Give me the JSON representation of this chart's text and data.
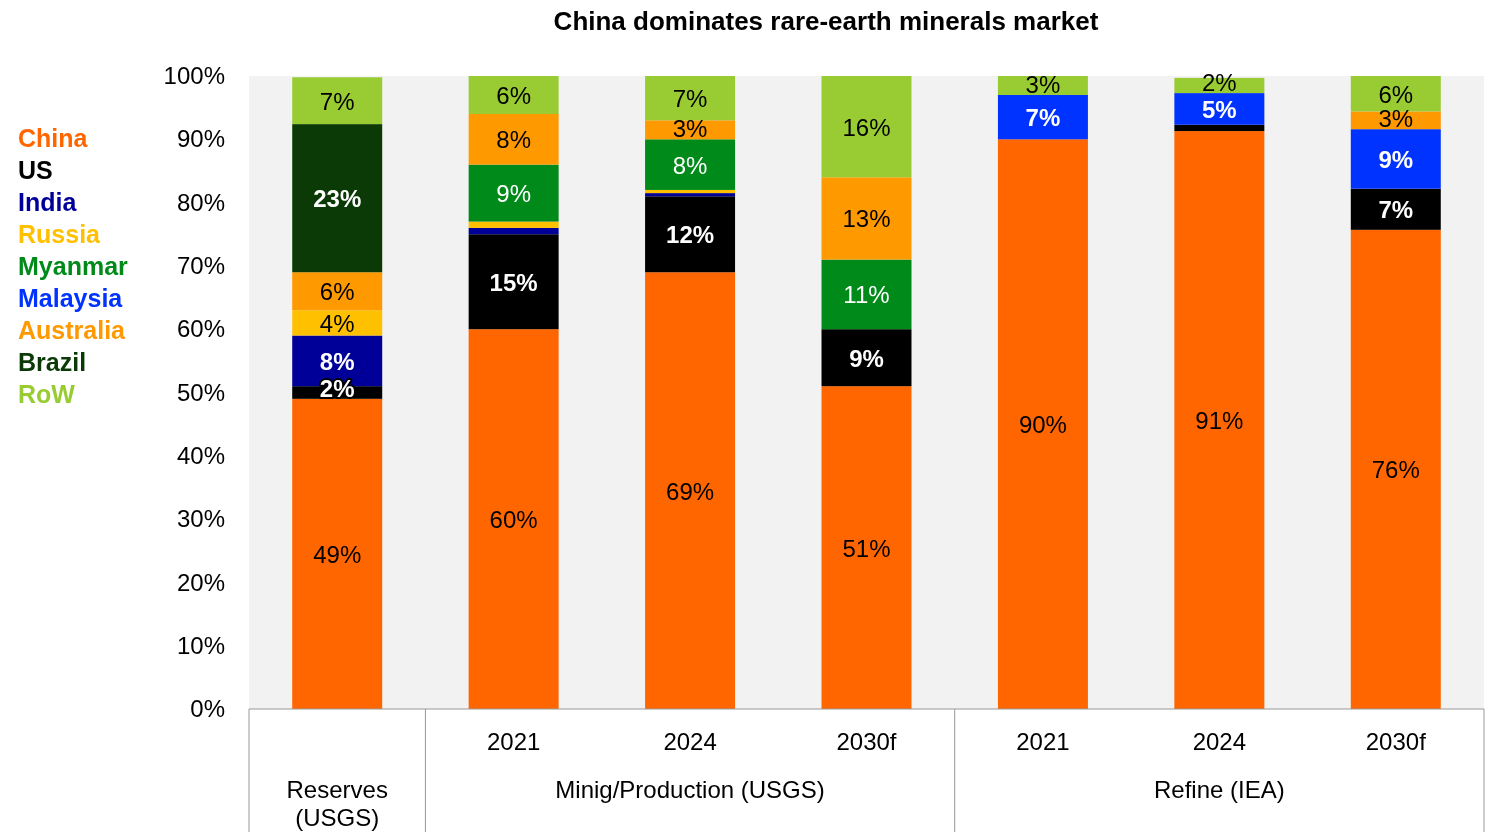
{
  "chart_data": {
    "type": "bar",
    "stacked": true,
    "title": "China dominates rare-earth minerals market",
    "categories": [
      null,
      "2021",
      "2024",
      "2030f",
      "2021",
      "2024",
      "2030f"
    ],
    "annotations": [
      "Reserves (USGS)",
      "Minig/Production (USGS)",
      "Refine (IEA)"
    ],
    "ylim": [
      0,
      100
    ],
    "yticks": [
      {
        "value": 0,
        "label": "0%"
      },
      {
        "value": 10,
        "label": "10%"
      },
      {
        "value": 20,
        "label": "20%"
      },
      {
        "value": 30,
        "label": "30%"
      },
      {
        "value": 40,
        "label": "40%"
      },
      {
        "value": 50,
        "label": "50%"
      },
      {
        "value": 60,
        "label": "60%"
      },
      {
        "value": 70,
        "label": "70%"
      },
      {
        "value": 80,
        "label": "80%"
      },
      {
        "value": 90,
        "label": "90%"
      },
      {
        "value": 100,
        "label": "100%"
      }
    ],
    "legend": "left",
    "series": [
      {
        "name": "China",
        "color": "#ff6600",
        "values": [
          49,
          60,
          69,
          51,
          90,
          91.3,
          75.7
        ],
        "value_labels": [
          "49%",
          "60%",
          "69%",
          "51%",
          "90%",
          "91%",
          "76%"
        ]
      },
      {
        "name": "US",
        "color": "#000000",
        "values": [
          2,
          15,
          12,
          9,
          null,
          1,
          6.5
        ],
        "value_labels": [
          "2%",
          "15%",
          "12%",
          "9%",
          null,
          null,
          "7%"
        ]
      },
      {
        "name": "India",
        "color": "#000099",
        "values": [
          8,
          1,
          0.5,
          null,
          null,
          null,
          null
        ],
        "value_labels": [
          "8%",
          null,
          null,
          null,
          null,
          null,
          null
        ]
      },
      {
        "name": "Russia",
        "color": "#ffc000",
        "values": [
          4,
          1,
          0.5,
          null,
          null,
          null,
          null
        ],
        "value_labels": [
          "4%",
          null,
          null,
          null,
          null,
          null,
          null
        ]
      },
      {
        "name": "Myanmar",
        "color": "#008a1a",
        "values": [
          null,
          9,
          8,
          11,
          null,
          null,
          null
        ],
        "value_labels": [
          null,
          "9%",
          "8%",
          "11%",
          null,
          null,
          null
        ]
      },
      {
        "name": "Malaysia",
        "color": "#0033ff",
        "values": [
          null,
          null,
          null,
          null,
          7,
          5,
          9.4
        ],
        "value_labels": [
          null,
          null,
          null,
          null,
          "7%",
          "5%",
          "9%"
        ]
      },
      {
        "name": "Australia",
        "color": "#ff9900",
        "values": [
          6,
          8,
          3,
          13,
          null,
          null,
          2.8
        ],
        "value_labels": [
          "6%",
          "8%",
          "3%",
          "13%",
          null,
          null,
          "3%"
        ]
      },
      {
        "name": "Brazil",
        "color": "#0b3a06",
        "values": [
          23.4,
          null,
          null,
          null,
          null,
          null,
          null
        ],
        "value_labels": [
          "23%",
          null,
          null,
          null,
          null,
          null,
          null
        ]
      },
      {
        "name": "RoW",
        "color": "#99cc33",
        "values": [
          7.4,
          6,
          7,
          16,
          3,
          2.4,
          5.6
        ],
        "value_labels": [
          "7%",
          "6%",
          "7%",
          "16%",
          "3%",
          "2%",
          "6%"
        ]
      }
    ]
  }
}
